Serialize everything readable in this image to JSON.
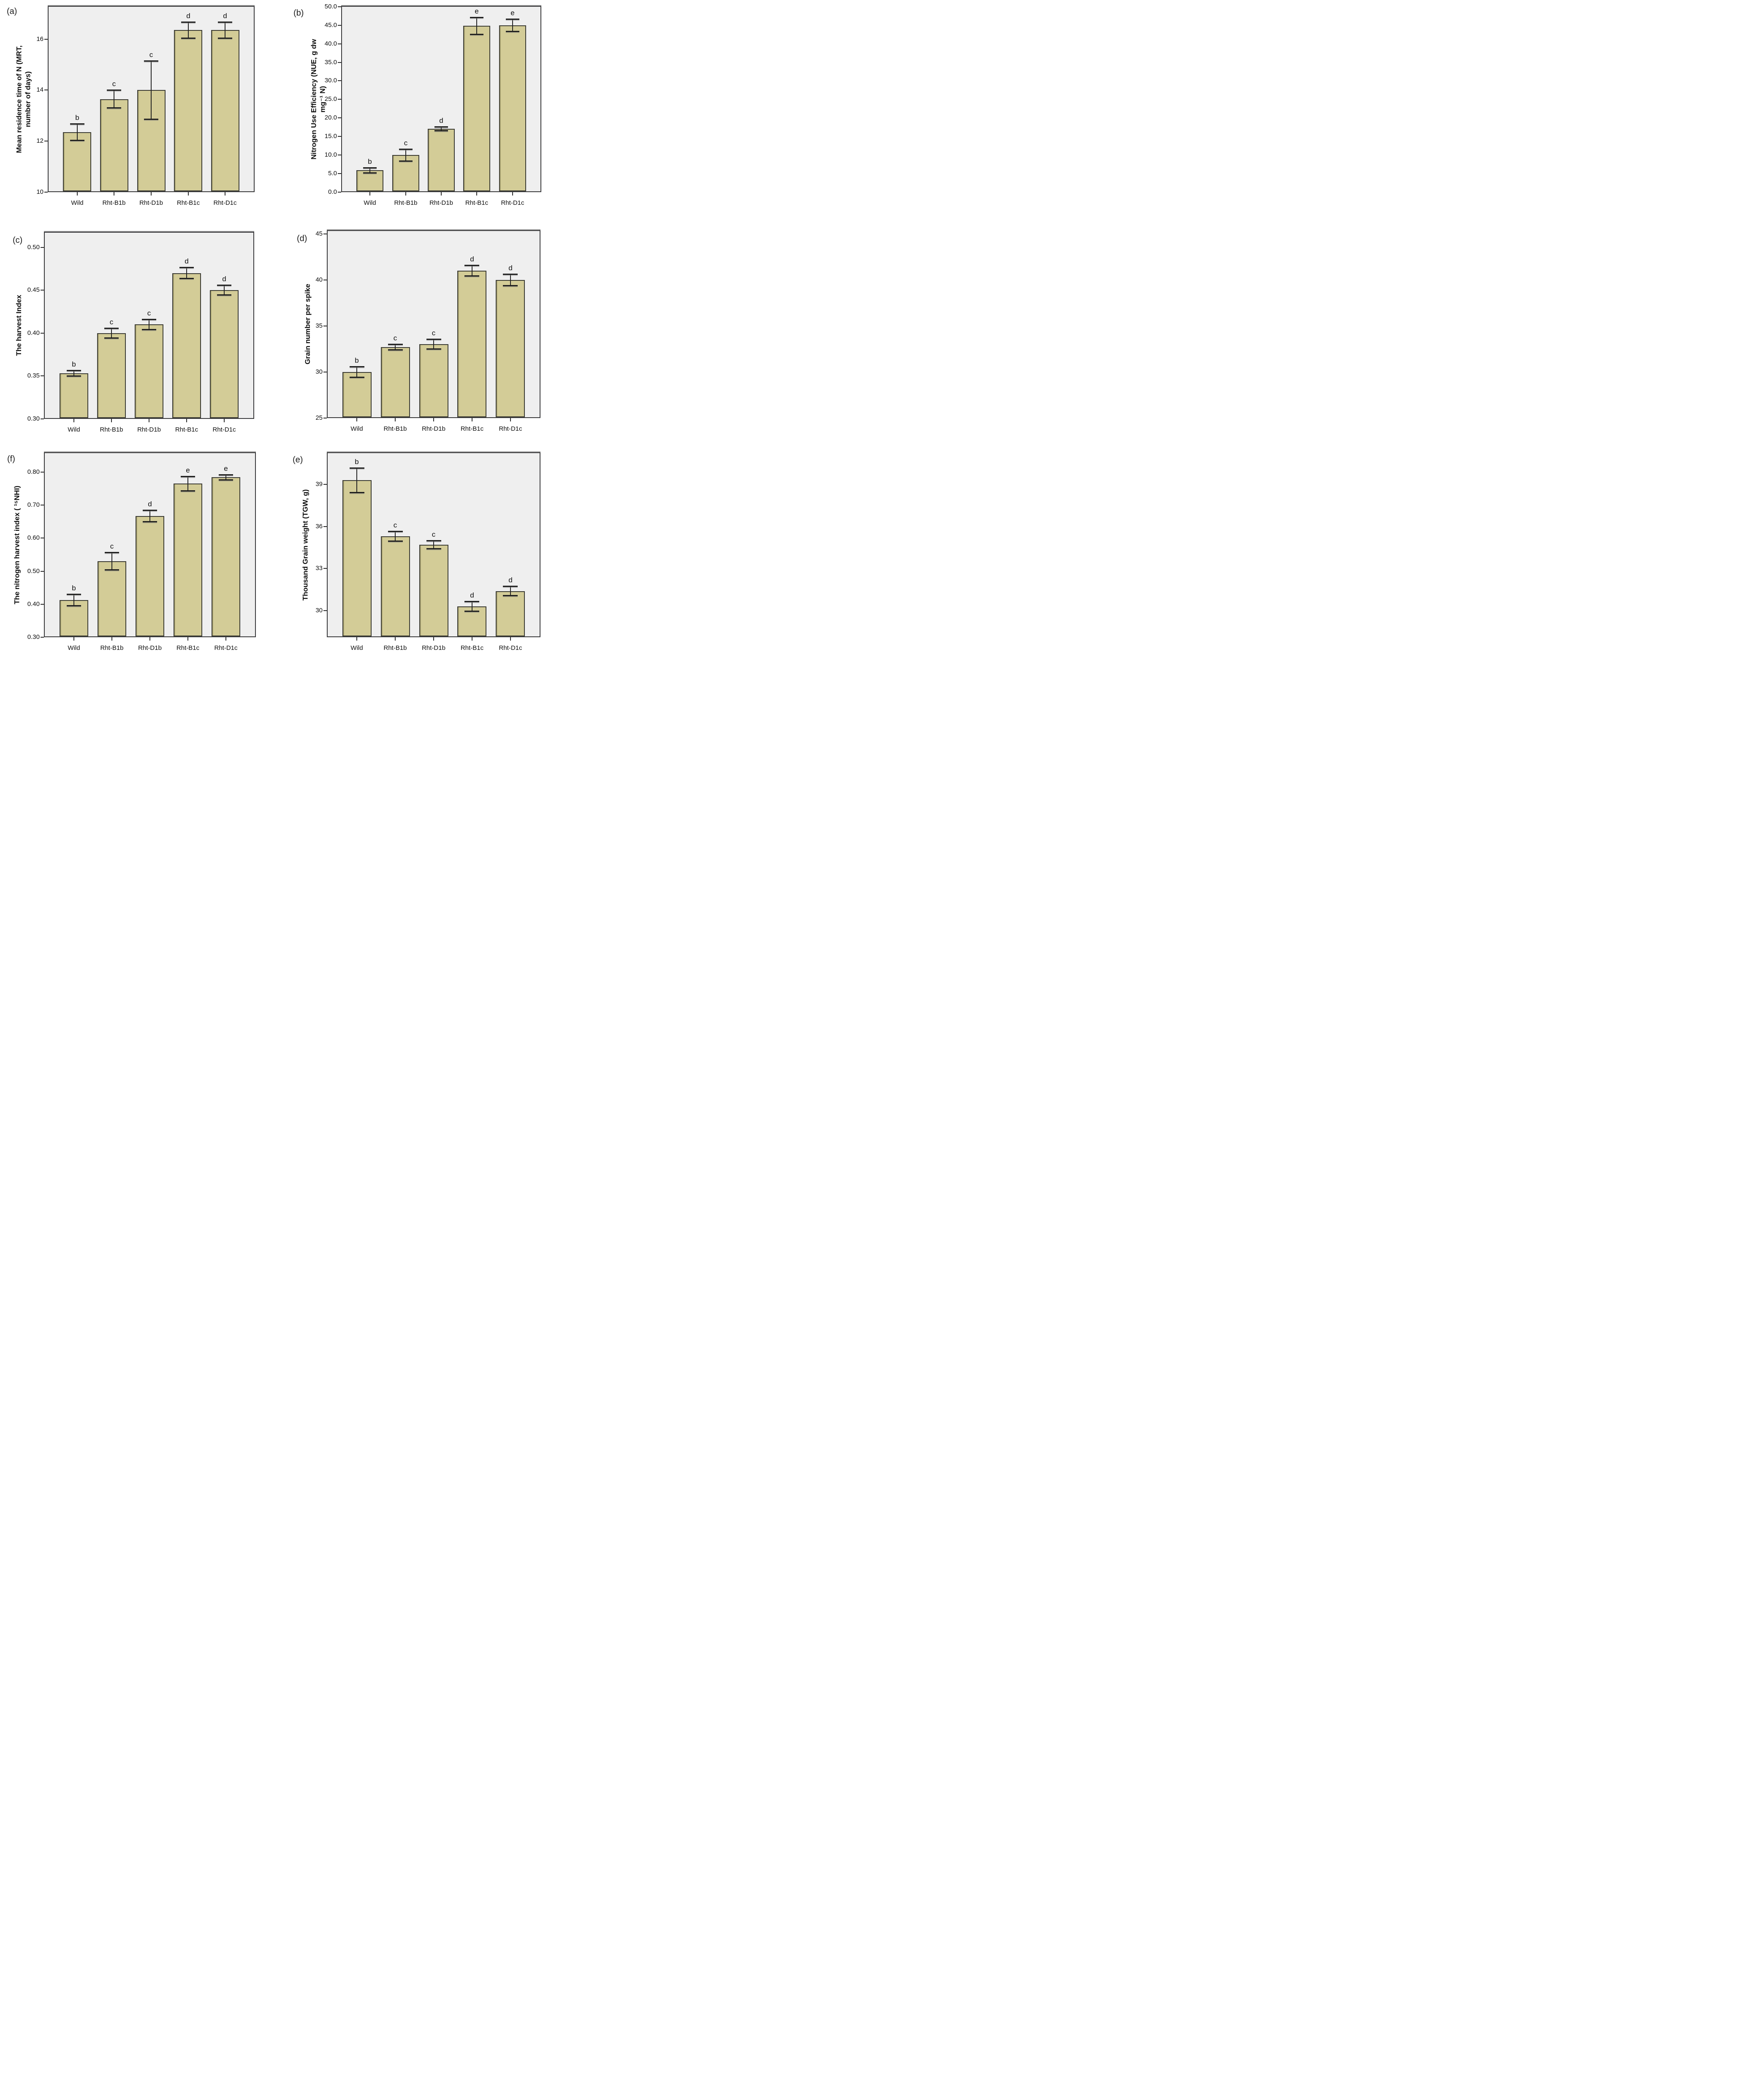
{
  "figure": {
    "background": "#ffffff",
    "plot_background": "#efefef",
    "bar_fill": "#d3cc97",
    "bar_border": "#3b3b33",
    "frame_border": "#3a3a3c",
    "error_bar_color": "#222222",
    "text_color": "#111111",
    "grid": false,
    "legend": false,
    "panel_order": [
      "(a)",
      "(b)",
      "(c)",
      "(d)",
      "(f)",
      "(e)"
    ]
  },
  "chart_data": [
    {
      "id": "a",
      "panel_label": "(a)",
      "type": "bar",
      "ylabel": "Mean residence time of N (MRT,\nnumber of days)",
      "xlabel": "",
      "categories": [
        "Wild",
        "Rht-B1b",
        "Rht-D1b",
        "Rht-B1c",
        "Rht-D1c"
      ],
      "values": [
        12.35,
        13.65,
        14.0,
        16.35,
        16.35
      ],
      "errors": [
        0.33,
        0.35,
        1.15,
        0.32,
        0.32
      ],
      "sig_letters": [
        "b",
        "c",
        "c",
        "d",
        "d"
      ],
      "ylim": [
        10,
        17.3
      ],
      "ytick_values": [
        10,
        12,
        14,
        16
      ],
      "ytick_labels": [
        "10",
        "12",
        "14",
        "16"
      ]
    },
    {
      "id": "b",
      "panel_label": "(b)",
      "type": "bar",
      "ylabel": "Nitrogen Use Efficiency (NUE, g dw\nmg⁻¹ N)",
      "xlabel": "",
      "categories": [
        "Wild",
        "Rht-B1b",
        "Rht-D1b",
        "Rht-B1c",
        "Rht-D1c"
      ],
      "values": [
        5.9,
        10.0,
        17.1,
        44.8,
        45.0
      ],
      "errors": [
        0.75,
        1.65,
        0.6,
        2.3,
        1.7
      ],
      "sig_letters": [
        "b",
        "c",
        "d",
        "e",
        "e"
      ],
      "ylim": [
        0,
        50.2
      ],
      "ytick_values": [
        0,
        5,
        10,
        15,
        20,
        25,
        30,
        35,
        40,
        45,
        50
      ],
      "ytick_labels": [
        "0.0",
        "5.0",
        "10.0",
        "15.0",
        "20.0",
        "25.0",
        "30.0",
        "35.0",
        "40.0",
        "45.0",
        "50.0"
      ]
    },
    {
      "id": "c",
      "panel_label": "(c)",
      "type": "bar",
      "ylabel": "The harvest Index",
      "xlabel": "",
      "categories": [
        "Wild",
        "Rht-B1b",
        "Rht-D1b",
        "Rht-B1c",
        "Rht-D1c"
      ],
      "values": [
        0.353,
        0.4,
        0.41,
        0.47,
        0.45
      ],
      "errors": [
        0.0035,
        0.006,
        0.006,
        0.0065,
        0.006
      ],
      "sig_letters": [
        "b",
        "c",
        "c",
        "d",
        "d"
      ],
      "ylim": [
        0.3,
        0.518
      ],
      "ytick_values": [
        0.3,
        0.35,
        0.4,
        0.45,
        0.5
      ],
      "ytick_labels": [
        "0.30",
        "0.35",
        "0.40",
        "0.45",
        "0.50"
      ]
    },
    {
      "id": "d",
      "panel_label": "(d)",
      "type": "bar",
      "ylabel": "Grain number per spike",
      "xlabel": "",
      "categories": [
        "Wild",
        "Rht-B1b",
        "Rht-D1b",
        "Rht-B1c",
        "Rht-D1c"
      ],
      "values": [
        30.0,
        32.7,
        33.0,
        41.0,
        40.0
      ],
      "errors": [
        0.6,
        0.3,
        0.55,
        0.6,
        0.65
      ],
      "sig_letters": [
        "b",
        "c",
        "c",
        "d",
        "d"
      ],
      "ylim": [
        25,
        45.4
      ],
      "ytick_values": [
        25,
        30,
        35,
        40,
        45
      ],
      "ytick_labels": [
        "25",
        "30",
        "35",
        "40",
        "45"
      ]
    },
    {
      "id": "f",
      "panel_label": "(f)",
      "type": "bar",
      "ylabel": "The nitrogen harvest index ( ¹⁵NHI)",
      "xlabel": "",
      "categories": [
        "Wild",
        "Rht-B1b",
        "Rht-D1b",
        "Rht-B1c",
        "Rht-D1c"
      ],
      "values": [
        0.413,
        0.53,
        0.667,
        0.765,
        0.784
      ],
      "errors": [
        0.018,
        0.027,
        0.018,
        0.022,
        0.008
      ],
      "sig_letters": [
        "b",
        "c",
        "d",
        "e",
        "e"
      ],
      "ylim": [
        0.3,
        0.86
      ],
      "ytick_values": [
        0.3,
        0.4,
        0.5,
        0.6,
        0.7,
        0.8
      ],
      "ytick_labels": [
        "0.30",
        "0.40",
        "0.50",
        "0.60",
        "0.70",
        "0.80"
      ]
    },
    {
      "id": "e",
      "panel_label": "(e)",
      "type": "bar",
      "ylabel": "Thousand Grain weight (TGW, g)",
      "xlabel": "",
      "categories": [
        "Wild",
        "Rht-B1b",
        "Rht-D1b",
        "Rht-B1c",
        "Rht-D1c"
      ],
      "values": [
        39.3,
        35.3,
        34.7,
        30.3,
        31.4
      ],
      "errors": [
        0.9,
        0.35,
        0.3,
        0.35,
        0.35
      ],
      "sig_letters": [
        "b",
        "c",
        "c",
        "d",
        "d"
      ],
      "ylim": [
        28.1,
        41.3
      ],
      "ytick_values": [
        30,
        33,
        36,
        39
      ],
      "ytick_labels": [
        "30",
        "33",
        "36",
        "39"
      ]
    }
  ]
}
